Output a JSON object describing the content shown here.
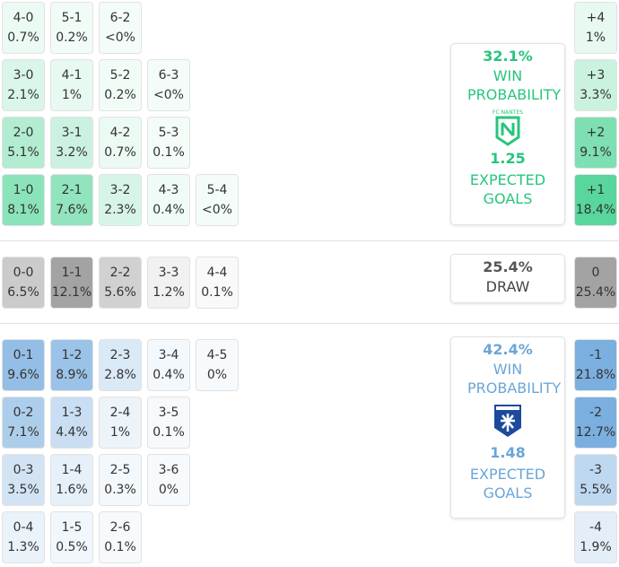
{
  "home": {
    "rows": [
      {
        "cells": [
          {
            "score": "4-0",
            "prob": "0.7%"
          },
          {
            "score": "5-1",
            "prob": "0.2%"
          },
          {
            "score": "6-2",
            "prob": "<0%"
          }
        ],
        "margin": {
          "label": "+4",
          "prob": "1%"
        }
      },
      {
        "cells": [
          {
            "score": "3-0",
            "prob": "2.1%"
          },
          {
            "score": "4-1",
            "prob": "1%"
          },
          {
            "score": "5-2",
            "prob": "0.2%"
          },
          {
            "score": "6-3",
            "prob": "<0%"
          }
        ],
        "margin": {
          "label": "+3",
          "prob": "3.3%"
        }
      },
      {
        "cells": [
          {
            "score": "2-0",
            "prob": "5.1%"
          },
          {
            "score": "3-1",
            "prob": "3.2%"
          },
          {
            "score": "4-2",
            "prob": "0.7%"
          },
          {
            "score": "5-3",
            "prob": "0.1%"
          }
        ],
        "margin": {
          "label": "+2",
          "prob": "9.1%"
        }
      },
      {
        "cells": [
          {
            "score": "1-0",
            "prob": "8.1%"
          },
          {
            "score": "2-1",
            "prob": "7.6%"
          },
          {
            "score": "3-2",
            "prob": "2.3%"
          },
          {
            "score": "4-3",
            "prob": "0.4%"
          },
          {
            "score": "5-4",
            "prob": "<0%"
          }
        ],
        "margin": {
          "label": "+1",
          "prob": "18.4%"
        }
      }
    ],
    "card": {
      "probability": "32.1%",
      "caption": "WIN PROBABILITY",
      "team": "FC NANTES",
      "xg": "1.25",
      "xg_caption": "EXPECTED GOALS"
    }
  },
  "draw": {
    "rows": [
      {
        "cells": [
          {
            "score": "0-0",
            "prob": "6.5%"
          },
          {
            "score": "1-1",
            "prob": "12.1%"
          },
          {
            "score": "2-2",
            "prob": "5.6%"
          },
          {
            "score": "3-3",
            "prob": "1.2%"
          },
          {
            "score": "4-4",
            "prob": "0.1%"
          }
        ],
        "margin": {
          "label": "0",
          "prob": "25.4%"
        }
      }
    ],
    "card": {
      "probability": "25.4%",
      "caption": "DRAW"
    }
  },
  "away": {
    "rows": [
      {
        "cells": [
          {
            "score": "0-1",
            "prob": "9.6%"
          },
          {
            "score": "1-2",
            "prob": "8.9%"
          },
          {
            "score": "2-3",
            "prob": "2.8%"
          },
          {
            "score": "3-4",
            "prob": "0.4%"
          },
          {
            "score": "4-5",
            "prob": "0%"
          }
        ],
        "margin": {
          "label": "-1",
          "prob": "21.8%"
        }
      },
      {
        "cells": [
          {
            "score": "0-2",
            "prob": "7.1%"
          },
          {
            "score": "1-3",
            "prob": "4.4%"
          },
          {
            "score": "2-4",
            "prob": "1%"
          },
          {
            "score": "3-5",
            "prob": "0.1%"
          }
        ],
        "margin": {
          "label": "-2",
          "prob": "12.7%"
        }
      },
      {
        "cells": [
          {
            "score": "0-3",
            "prob": "3.5%"
          },
          {
            "score": "1-4",
            "prob": "1.6%"
          },
          {
            "score": "2-5",
            "prob": "0.3%"
          },
          {
            "score": "3-6",
            "prob": "0%"
          }
        ],
        "margin": {
          "label": "-3",
          "prob": "5.5%"
        }
      },
      {
        "cells": [
          {
            "score": "0-4",
            "prob": "1.3%"
          },
          {
            "score": "1-5",
            "prob": "0.5%"
          },
          {
            "score": "2-6",
            "prob": "0.1%"
          }
        ],
        "margin": {
          "label": "-4",
          "prob": "1.9%"
        }
      }
    ],
    "card": {
      "probability": "42.4%",
      "caption": "WIN PROBABILITY",
      "xg": "1.48",
      "xg_caption": "EXPECTED GOALS"
    }
  }
}
